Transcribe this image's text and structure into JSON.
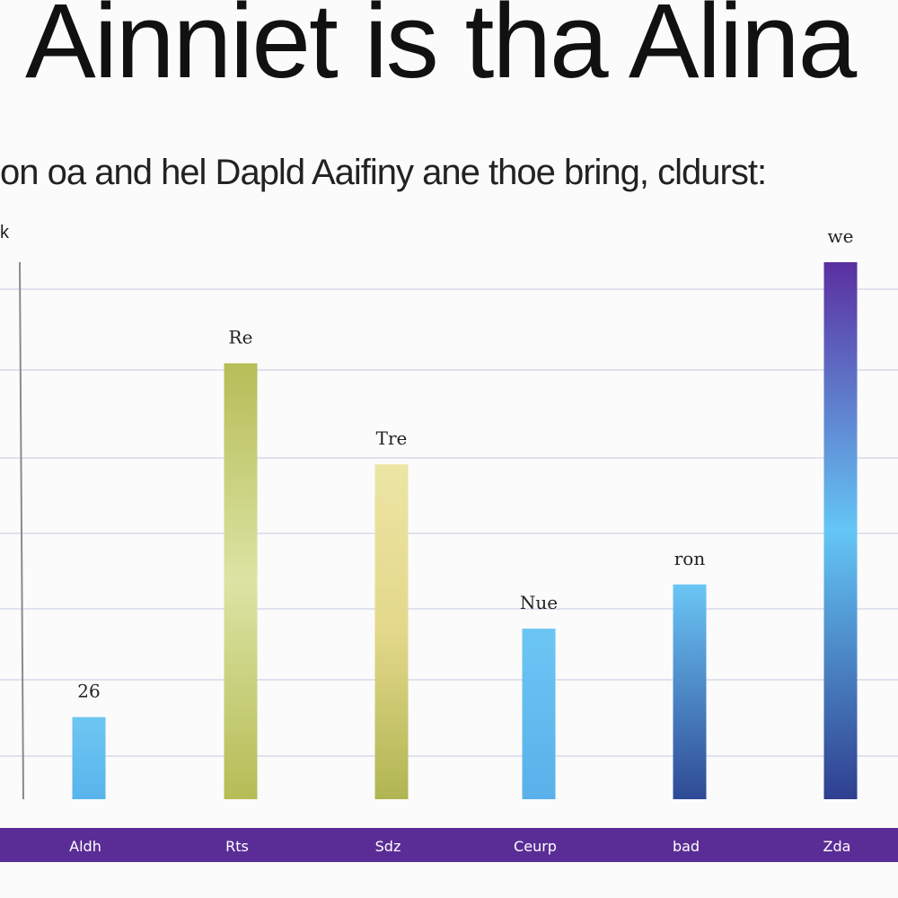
{
  "title": "Ainniet is tha Alina",
  "subtitle": "on oa and hel Dapld Aaifiny ane thoe bring, cldurst:",
  "corner_label": "k",
  "colors": {
    "band": "#5a2d96",
    "grid": "#dfe3ee",
    "axis": "#8a8a8a"
  },
  "chart_data": {
    "type": "bar",
    "categories": [
      "Aldh",
      "Rts",
      "Sdz",
      "Ceurp",
      "bad",
      "Zda"
    ],
    "values": [
      26,
      138,
      106,
      54,
      68,
      170
    ],
    "value_labels": [
      "26",
      "Re",
      "Tre",
      "Nue",
      "ron",
      "we"
    ],
    "ylim": [
      0,
      170
    ],
    "grid": true,
    "bar_colors": [
      [
        "#6ec6f2",
        "#58b4ec"
      ],
      [
        "#b7bd57",
        "#dbe4a3",
        "#b6bc55"
      ],
      [
        "#ece5a4",
        "#e3d88a",
        "#b0b552"
      ],
      [
        "#6cc6f4",
        "#5ab0ea"
      ],
      [
        "#6ac6f5",
        "#2f4a96"
      ],
      [
        "#5a2fa0",
        "#64c6f5",
        "#2f3f90"
      ]
    ]
  }
}
